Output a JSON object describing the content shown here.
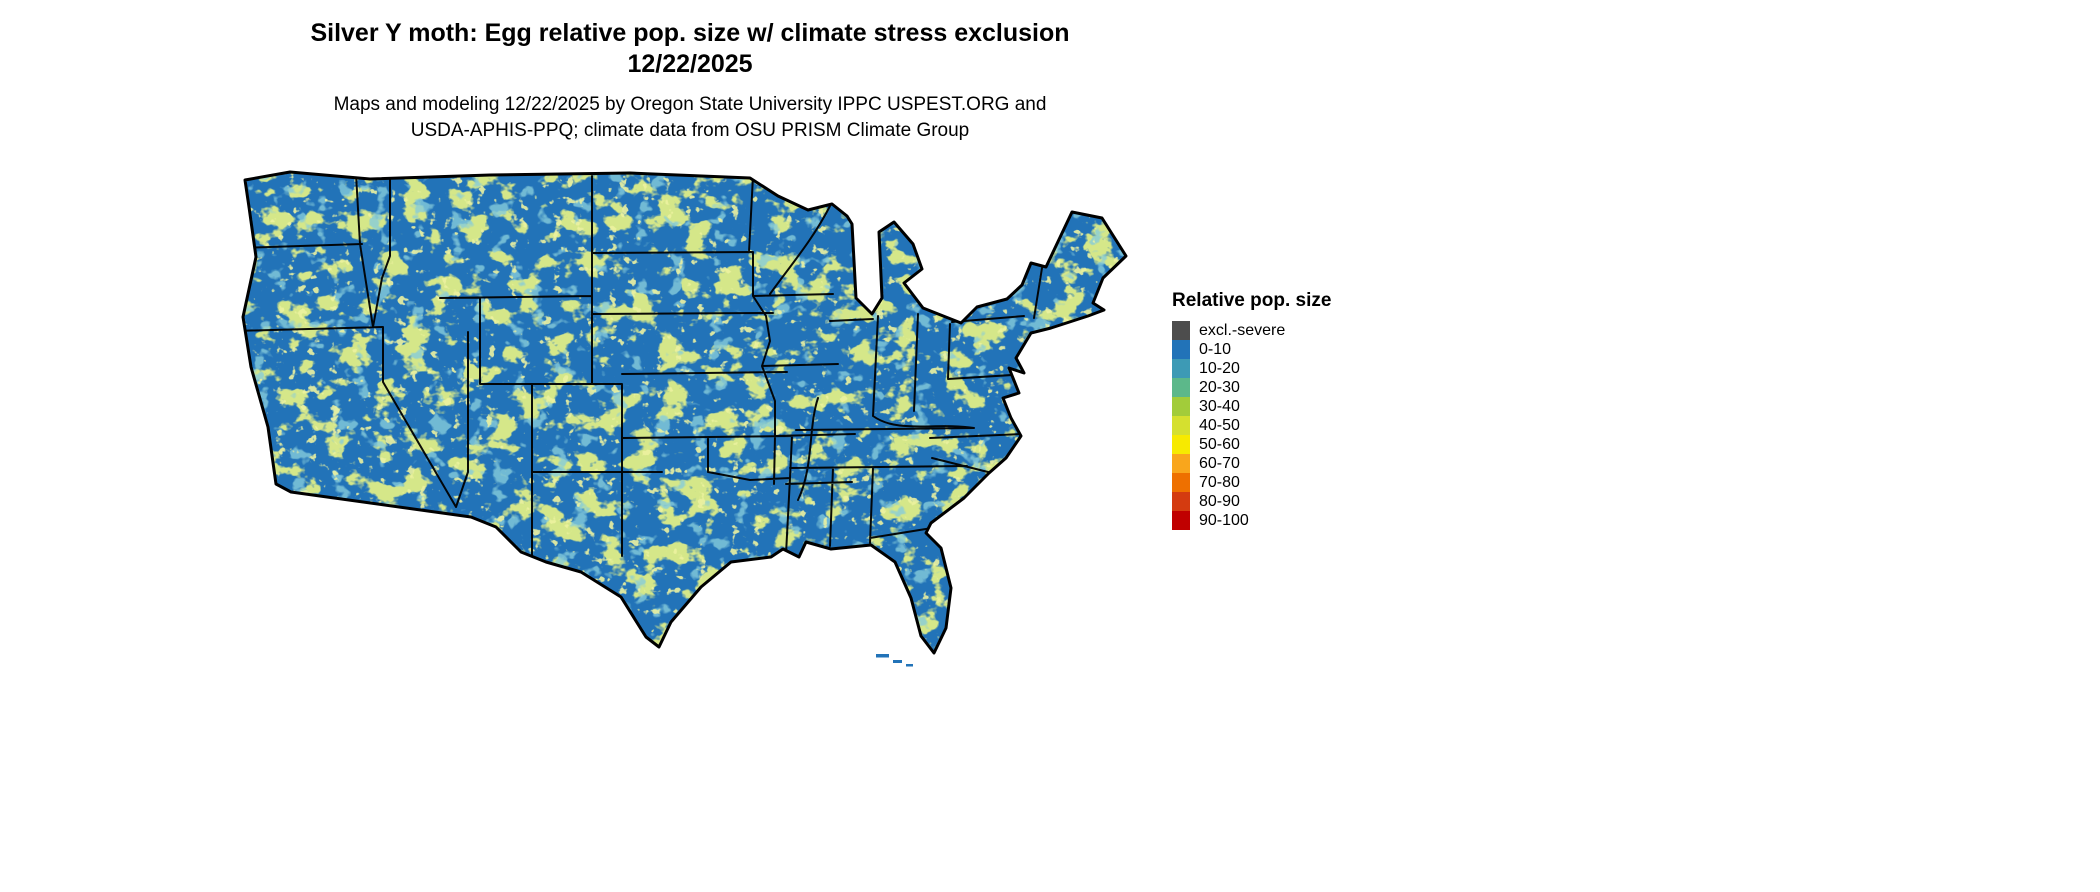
{
  "title": {
    "line1": "Silver Y moth: Egg relative pop. size w/ climate stress exclusion",
    "line2": "12/22/2025"
  },
  "subtitle": {
    "line1": "Maps and modeling 12/22/2025 by Oregon State University IPPC USPEST.ORG and",
    "line2": "USDA-APHIS-PPQ; climate data from OSU PRISM Climate Group"
  },
  "legend": {
    "title": "Relative pop. size",
    "items": [
      {
        "label": "excl.-severe",
        "color": "#4d4d4d"
      },
      {
        "label": "0-10",
        "color": "#2273b8"
      },
      {
        "label": "10-20",
        "color": "#3d9ab5"
      },
      {
        "label": "20-30",
        "color": "#5cb88a"
      },
      {
        "label": "30-40",
        "color": "#a2cc3a"
      },
      {
        "label": "40-50",
        "color": "#d5e02f"
      },
      {
        "label": "50-60",
        "color": "#f7ea00"
      },
      {
        "label": "60-70",
        "color": "#f9a61c"
      },
      {
        "label": "70-80",
        "color": "#ee7000"
      },
      {
        "label": "80-90",
        "color": "#d43b10"
      },
      {
        "label": "90-100",
        "color": "#c00000"
      }
    ]
  },
  "map": {
    "description": "Continental United States choropleth raster, mostly 0-10 (blue) with mottled 20-50 (teal to yellow-green) patches, black state borders",
    "colors": {
      "base": "#2273b8",
      "speckle_yellowgreen": "#a9cc40",
      "speckle_teal": "#3d9ab5",
      "speckle_light": "#d8e35a",
      "outline": "#000000",
      "background": "#ffffff"
    }
  }
}
